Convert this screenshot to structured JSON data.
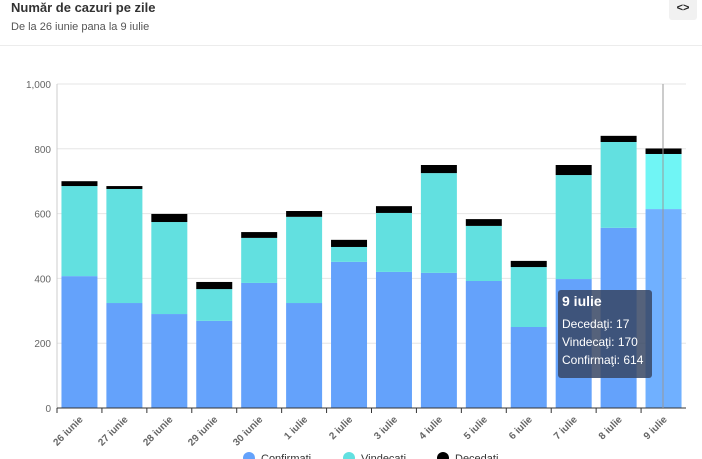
{
  "header": {
    "title": "Număr de cazuri pe zile",
    "subtitle": "De la 26 iunie pana la 9 iulie",
    "embed_label": "<>"
  },
  "chart_data": {
    "type": "bar",
    "stacked": true,
    "categories": [
      "26 iunie",
      "27 iunie",
      "28 iunie",
      "29 iunie",
      "30 iunie",
      "1 iulie",
      "2 iulie",
      "3 iulie",
      "4 iulie",
      "5 iulie",
      "6 iulie",
      "7 iulie",
      "8 iulie",
      "9 iulie"
    ],
    "series": [
      {
        "name": "Confirmati",
        "color": "#64a2fb",
        "values": [
          407,
          324,
          290,
          269,
          386,
          324,
          451,
          420,
          417,
          392,
          250,
          398,
          556,
          614
        ]
      },
      {
        "name": "Vindecati",
        "color": "#62e0e0",
        "values": [
          278,
          352,
          284,
          98,
          139,
          266,
          46,
          182,
          308,
          170,
          185,
          321,
          265,
          170
        ]
      },
      {
        "name": "Decedati",
        "color": "#000000",
        "values": [
          15,
          9,
          25,
          22,
          18,
          18,
          22,
          21,
          25,
          21,
          19,
          31,
          19,
          17
        ]
      }
    ],
    "yticks": [
      "0",
      "200",
      "400",
      "600",
      "800",
      "1,000"
    ],
    "ylim": [
      0,
      1000
    ],
    "grid": true,
    "legend": "bottom",
    "tooltip": {
      "title": "9 iulie",
      "lines": [
        "Decedaţi: 17",
        "Vindecaţi: 170",
        "Confirmaţi: 614"
      ]
    }
  }
}
